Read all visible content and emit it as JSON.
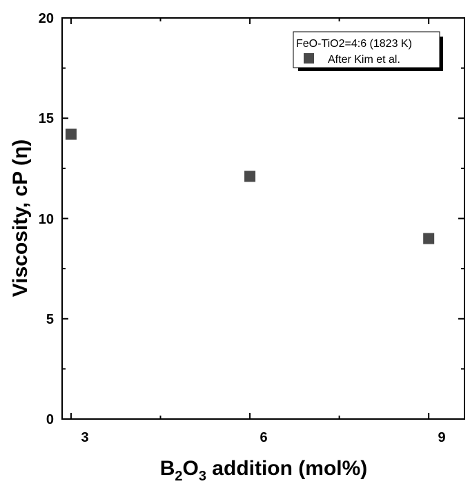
{
  "chart_data": {
    "type": "scatter",
    "xlabel": {
      "main": "B",
      "sub1": "2",
      "mid": "O",
      "sub2": "3",
      "rest": " addition (mol%)"
    },
    "ylabel": "Viscosity, cP (η)",
    "xlim": [
      2.85,
      9.6
    ],
    "ylim": [
      0,
      20
    ],
    "x_ticks": [
      "3",
      "6",
      "9"
    ],
    "y_ticks": [
      "0",
      "5",
      "10",
      "15",
      "20"
    ],
    "legend": {
      "title": "FeO-TiO2=4:6 (1823 K)",
      "placement": "top-right"
    },
    "series": [
      {
        "name": "After Kim et al.",
        "marker": "square",
        "color": "#4a4a4a",
        "points": [
          {
            "x": 3,
            "y": 14.2
          },
          {
            "x": 6,
            "y": 12.1
          },
          {
            "x": 9,
            "y": 9.0
          }
        ]
      }
    ]
  }
}
